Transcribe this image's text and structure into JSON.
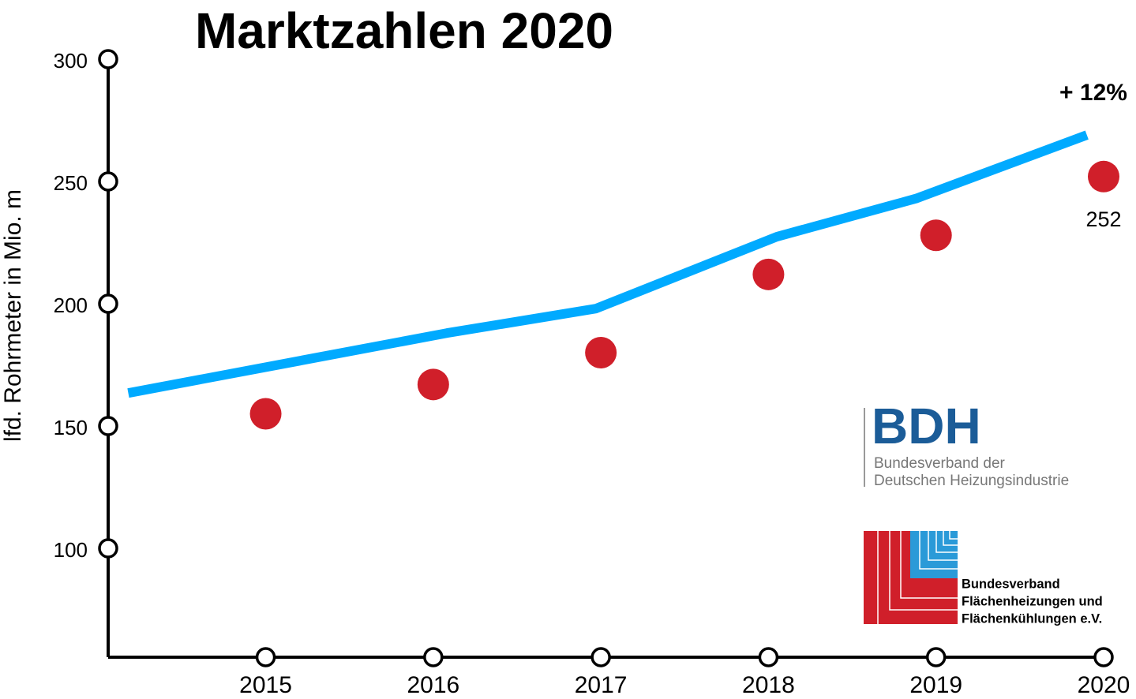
{
  "chart_data": {
    "type": "line",
    "title": "Marktzahlen 2020",
    "y_label": "lfd. Rohrmeter in Mio. m",
    "annotation": "+ 12%",
    "xlim": [
      2014.06,
      2020
    ],
    "xticks": [
      2015,
      2016,
      2017,
      2018,
      2019,
      2020
    ],
    "ylim": [
      55.5,
      300
    ],
    "yticks": [
      100,
      150,
      200,
      250,
      300
    ],
    "series": [
      {
        "type": "line",
        "color": "#00aaff",
        "x": [
          2014.18,
          2016.08,
          2016.97,
          2018.05,
          2018.88,
          2019.9
        ],
        "values": [
          163.5,
          188,
          198,
          227.4,
          243,
          269
        ]
      },
      {
        "type": "scatter",
        "color": "#d01f2a",
        "x": [
          2015,
          2016,
          2017,
          2018,
          2019,
          2020
        ],
        "values": [
          155,
          167,
          180,
          212,
          228,
          252
        ],
        "value_labels": [
          null,
          null,
          null,
          null,
          null,
          "252"
        ]
      }
    ],
    "logos": [
      {
        "title": "BDH",
        "lines": [
          "Bundesverband der",
          "Deutschen Heizungsindustrie"
        ]
      },
      {
        "lines": [
          "Bundesverband",
          "Flächenheizungen und",
          "Flächenkühlungen e.V."
        ]
      }
    ]
  }
}
